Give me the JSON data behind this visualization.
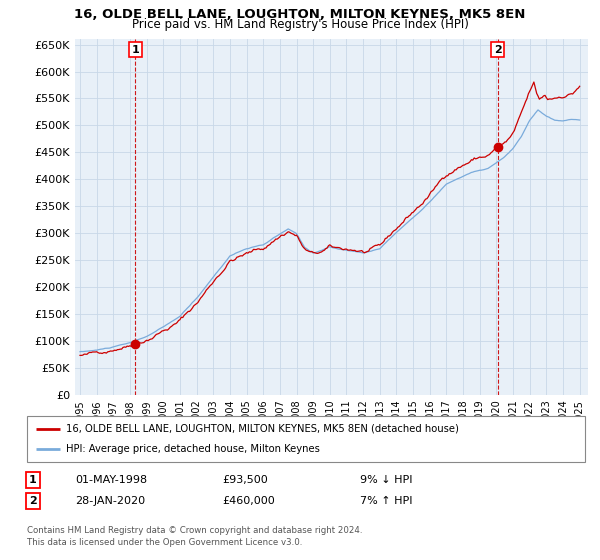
{
  "title": "16, OLDE BELL LANE, LOUGHTON, MILTON KEYNES, MK5 8EN",
  "subtitle": "Price paid vs. HM Land Registry's House Price Index (HPI)",
  "sale1_date": "01-MAY-1998",
  "sale1_price": 93500,
  "sale1_label": "9% ↓ HPI",
  "sale2_date": "28-JAN-2020",
  "sale2_price": 460000,
  "sale2_label": "7% ↑ HPI",
  "legend_line1": "16, OLDE BELL LANE, LOUGHTON, MILTON KEYNES, MK5 8EN (detached house)",
  "legend_line2": "HPI: Average price, detached house, Milton Keynes",
  "footer1": "Contains HM Land Registry data © Crown copyright and database right 2024.",
  "footer2": "This data is licensed under the Open Government Licence v3.0.",
  "hpi_color": "#7aabdb",
  "price_color": "#cc0000",
  "marker_color": "#cc0000",
  "background_color": "#ffffff",
  "chart_bg": "#e8f0f8",
  "grid_color": "#c8d8e8",
  "ylim": [
    0,
    660000
  ],
  "yticks": [
    0,
    50000,
    100000,
    150000,
    200000,
    250000,
    300000,
    350000,
    400000,
    450000,
    500000,
    550000,
    600000,
    650000
  ],
  "sale1_x_year": 1998.33,
  "sale2_x_year": 2020.08,
  "xmin": 1994.7,
  "xmax": 2025.5,
  "hpi_monthly_years": [
    1995.0,
    1995.08,
    1995.17,
    1995.25,
    1995.33,
    1995.42,
    1995.5,
    1995.58,
    1995.67,
    1995.75,
    1995.83,
    1995.92,
    1996.0,
    1996.08,
    1996.17,
    1996.25,
    1996.33,
    1996.42,
    1996.5,
    1996.58,
    1996.67,
    1996.75,
    1996.83,
    1996.92,
    1997.0,
    1997.08,
    1997.17,
    1997.25,
    1997.33,
    1997.42,
    1997.5,
    1997.58,
    1997.67,
    1997.75,
    1997.83,
    1997.92,
    1998.0,
    1998.08,
    1998.17,
    1998.25,
    1998.33,
    1998.42,
    1998.5,
    1998.58,
    1998.67,
    1998.75,
    1998.83,
    1998.92,
    1999.0,
    1999.08,
    1999.17,
    1999.25,
    1999.33,
    1999.42,
    1999.5,
    1999.58,
    1999.67,
    1999.75,
    1999.83,
    1999.92,
    2000.0,
    2000.08,
    2000.17,
    2000.25,
    2000.33,
    2000.42,
    2000.5,
    2000.58,
    2000.67,
    2000.75,
    2000.83,
    2000.92,
    2001.0,
    2001.08,
    2001.17,
    2001.25,
    2001.33,
    2001.42,
    2001.5,
    2001.58,
    2001.67,
    2001.75,
    2001.83,
    2001.92,
    2002.0,
    2002.08,
    2002.17,
    2002.25,
    2002.33,
    2002.42,
    2002.5,
    2002.58,
    2002.67,
    2002.75,
    2002.83,
    2002.92,
    2003.0,
    2003.08,
    2003.17,
    2003.25,
    2003.33,
    2003.42,
    2003.5,
    2003.58,
    2003.67,
    2003.75,
    2003.83,
    2003.92,
    2004.0,
    2004.08,
    2004.17,
    2004.25,
    2004.33,
    2004.42,
    2004.5,
    2004.58,
    2004.67,
    2004.75,
    2004.83,
    2004.92,
    2005.0,
    2005.08,
    2005.17,
    2005.25,
    2005.33,
    2005.42,
    2005.5,
    2005.58,
    2005.67,
    2005.75,
    2005.83,
    2005.92,
    2006.0,
    2006.08,
    2006.17,
    2006.25,
    2006.33,
    2006.42,
    2006.5,
    2006.58,
    2006.67,
    2006.75,
    2006.83,
    2006.92,
    2007.0,
    2007.08,
    2007.17,
    2007.25,
    2007.33,
    2007.42,
    2007.5,
    2007.58,
    2007.67,
    2007.75,
    2007.83,
    2007.92,
    2008.0,
    2008.08,
    2008.17,
    2008.25,
    2008.33,
    2008.42,
    2008.5,
    2008.58,
    2008.67,
    2008.75,
    2008.83,
    2008.92,
    2009.0,
    2009.08,
    2009.17,
    2009.25,
    2009.33,
    2009.42,
    2009.5,
    2009.58,
    2009.67,
    2009.75,
    2009.83,
    2009.92,
    2010.0,
    2010.08,
    2010.17,
    2010.25,
    2010.33,
    2010.42,
    2010.5,
    2010.58,
    2010.67,
    2010.75,
    2010.83,
    2010.92,
    2011.0,
    2011.08,
    2011.17,
    2011.25,
    2011.33,
    2011.42,
    2011.5,
    2011.58,
    2011.67,
    2011.75,
    2011.83,
    2011.92,
    2012.0,
    2012.08,
    2012.17,
    2012.25,
    2012.33,
    2012.42,
    2012.5,
    2012.58,
    2012.67,
    2012.75,
    2012.83,
    2012.92,
    2013.0,
    2013.08,
    2013.17,
    2013.25,
    2013.33,
    2013.42,
    2013.5,
    2013.58,
    2013.67,
    2013.75,
    2013.83,
    2013.92,
    2014.0,
    2014.08,
    2014.17,
    2014.25,
    2014.33,
    2014.42,
    2014.5,
    2014.58,
    2014.67,
    2014.75,
    2014.83,
    2014.92,
    2015.0,
    2015.08,
    2015.17,
    2015.25,
    2015.33,
    2015.42,
    2015.5,
    2015.58,
    2015.67,
    2015.75,
    2015.83,
    2015.92,
    2016.0,
    2016.08,
    2016.17,
    2016.25,
    2016.33,
    2016.42,
    2016.5,
    2016.58,
    2016.67,
    2016.75,
    2016.83,
    2016.92,
    2017.0,
    2017.08,
    2017.17,
    2017.25,
    2017.33,
    2017.42,
    2017.5,
    2017.58,
    2017.67,
    2017.75,
    2017.83,
    2017.92,
    2018.0,
    2018.08,
    2018.17,
    2018.25,
    2018.33,
    2018.42,
    2018.5,
    2018.58,
    2018.67,
    2018.75,
    2018.83,
    2018.92,
    2019.0,
    2019.08,
    2019.17,
    2019.25,
    2019.33,
    2019.42,
    2019.5,
    2019.58,
    2019.67,
    2019.75,
    2019.83,
    2019.92,
    2020.0,
    2020.08,
    2020.17,
    2020.25,
    2020.33,
    2020.42,
    2020.5,
    2020.58,
    2020.67,
    2020.75,
    2020.83,
    2020.92,
    2021.0,
    2021.08,
    2021.17,
    2021.25,
    2021.33,
    2021.42,
    2021.5,
    2021.58,
    2021.67,
    2021.75,
    2021.83,
    2021.92,
    2022.0,
    2022.08,
    2022.17,
    2022.25,
    2022.33,
    2022.42,
    2022.5,
    2022.58,
    2022.67,
    2022.75,
    2022.83,
    2022.92,
    2023.0,
    2023.08,
    2023.17,
    2023.25,
    2023.33,
    2023.42,
    2023.5,
    2023.58,
    2023.67,
    2023.75,
    2023.83,
    2023.92,
    2024.0,
    2024.08,
    2024.17,
    2024.25,
    2024.33,
    2024.42,
    2024.5,
    2024.58,
    2024.67,
    2024.75,
    2024.83,
    2024.92,
    2025.0
  ]
}
